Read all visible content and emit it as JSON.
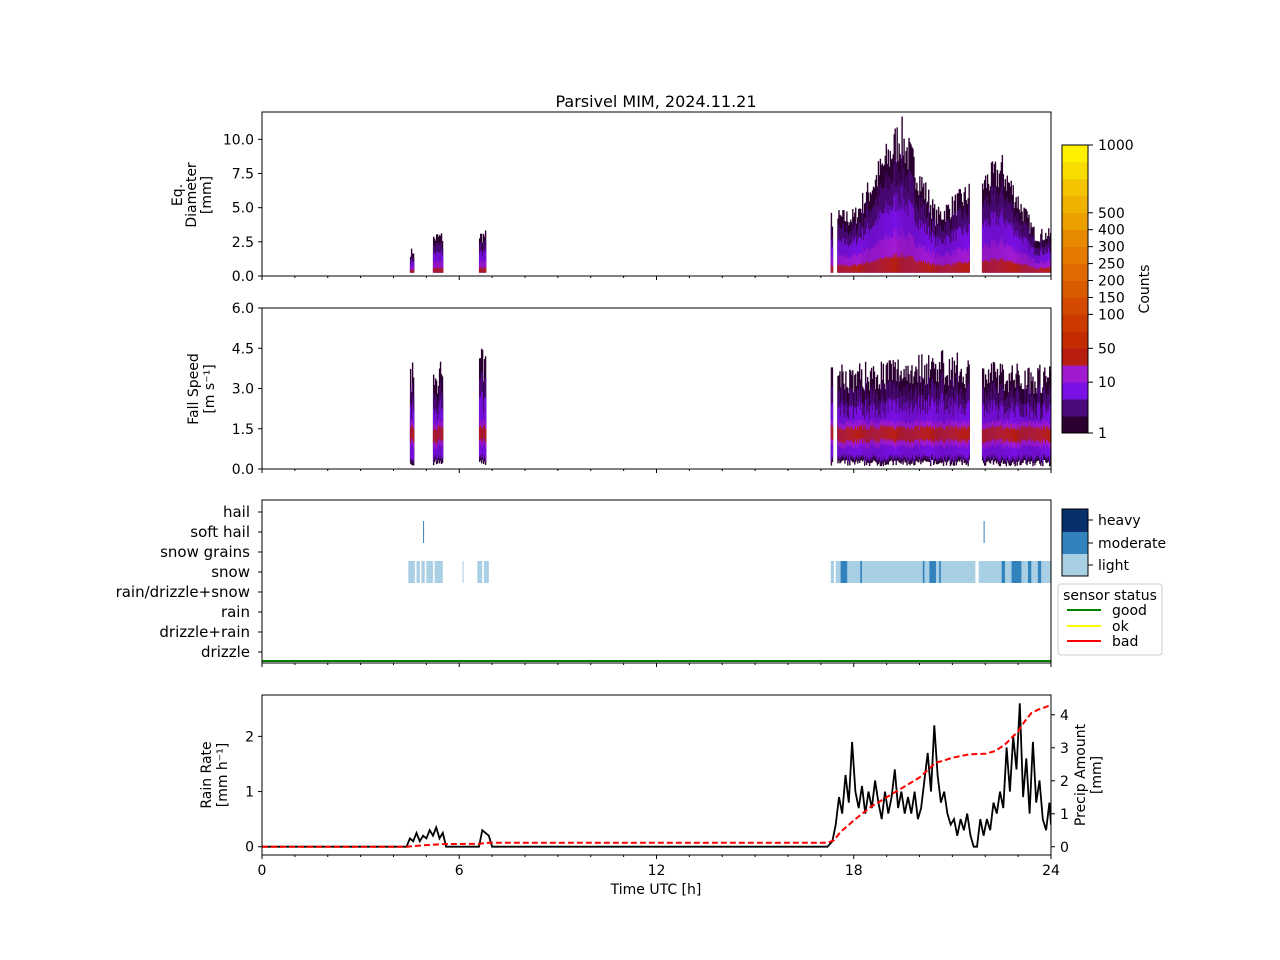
{
  "figure": {
    "title": "Parsivel MIM, 2024.11.21"
  },
  "colorbar": {
    "label": "Counts",
    "tick_labels": [
      "1",
      "10",
      "50",
      "100",
      "150",
      "200",
      "250",
      "300",
      "400",
      "500",
      "1000"
    ],
    "colors": [
      "#2b0030",
      "#4b0a7a",
      "#7a10e6",
      "#a21ad0",
      "#b81e10",
      "#c42b00",
      "#cc3a00",
      "#d44a00",
      "#da5a00",
      "#e06a00",
      "#e47a00",
      "#e88a00",
      "#eca000",
      "#f0b200",
      "#f4c400",
      "#f8dc00",
      "#fff000"
    ]
  },
  "ptype_legend": {
    "levels": [
      "heavy",
      "moderate",
      "light"
    ],
    "colors": {
      "heavy": "#08306b",
      "moderate": "#3182bd",
      "light": "#a9cfe5"
    }
  },
  "status_legend": {
    "title": "sensor status",
    "items": [
      {
        "label": "good",
        "color": "#008000"
      },
      {
        "label": "ok",
        "color": "#ffff00"
      },
      {
        "label": "bad",
        "color": "#ff0000"
      }
    ]
  },
  "chart_data": [
    {
      "type": "heatmap",
      "ylabel": [
        "Eq.",
        "Diameter",
        "[mm]"
      ],
      "xlim": [
        0,
        24
      ],
      "ylim": [
        0,
        12
      ],
      "yticks": [
        "0.0",
        "2.5",
        "5.0",
        "7.5",
        "10.0"
      ],
      "ytick_values": [
        0,
        2.5,
        5,
        7.5,
        10
      ],
      "precip_periods_h": [
        [
          4.5,
          4.6
        ],
        [
          5.2,
          5.5
        ],
        [
          6.6,
          6.8
        ],
        [
          17.3,
          17.35
        ],
        [
          17.5,
          21.5
        ],
        [
          21.9,
          24.0
        ]
      ],
      "max_extent_mm": [
        [
          4.5,
          2.0
        ],
        [
          5.3,
          3.3
        ],
        [
          6.7,
          3.4
        ],
        [
          18.0,
          5.0
        ],
        [
          19.4,
          12.0
        ],
        [
          20.5,
          5.0
        ],
        [
          22.5,
          9.0
        ],
        [
          23.5,
          3.5
        ]
      ]
    },
    {
      "type": "heatmap",
      "ylabel": [
        "Fall Speed",
        "[m s⁻¹]"
      ],
      "xlim": [
        0,
        24
      ],
      "ylim": [
        0,
        6
      ],
      "yticks": [
        "0.0",
        "1.5",
        "3.0",
        "4.5",
        "6.0"
      ],
      "ytick_values": [
        0,
        1.5,
        3,
        4.5,
        6
      ],
      "max_extent_ms": [
        [
          4.5,
          4.0
        ],
        [
          5.3,
          4.0
        ],
        [
          6.6,
          4.5
        ],
        [
          18.0,
          4.0
        ],
        [
          20.5,
          4.5
        ],
        [
          22.5,
          4.0
        ]
      ]
    },
    {
      "type": "table",
      "categories": [
        "hail",
        "soft hail",
        "snow grains",
        "snow",
        "rain/drizzle+snow",
        "rain",
        "drizzle+rain",
        "drizzle"
      ],
      "events": [
        {
          "category": "soft hail",
          "intensity": "moderate",
          "t": [
            4.9,
            4.92
          ]
        },
        {
          "category": "soft hail",
          "intensity": "moderate",
          "t": [
            21.95,
            21.97
          ]
        },
        {
          "category": "snow",
          "intensity": "light",
          "t": [
            4.45,
            4.65
          ]
        },
        {
          "category": "snow",
          "intensity": "light",
          "t": [
            4.7,
            4.8
          ]
        },
        {
          "category": "snow",
          "intensity": "light",
          "t": [
            4.85,
            4.95
          ]
        },
        {
          "category": "snow",
          "intensity": "light",
          "t": [
            5.0,
            5.2
          ]
        },
        {
          "category": "snow",
          "intensity": "light",
          "t": [
            5.25,
            5.5
          ]
        },
        {
          "category": "snow",
          "intensity": "light",
          "t": [
            6.1,
            6.13
          ]
        },
        {
          "category": "snow",
          "intensity": "light",
          "t": [
            6.55,
            6.7
          ]
        },
        {
          "category": "snow",
          "intensity": "light",
          "t": [
            6.75,
            6.9
          ]
        },
        {
          "category": "snow",
          "intensity": "light",
          "t": [
            17.3,
            17.4
          ]
        },
        {
          "category": "snow",
          "intensity": "light",
          "t": [
            17.45,
            21.7
          ]
        },
        {
          "category": "snow",
          "intensity": "light",
          "t": [
            21.8,
            24.0
          ]
        },
        {
          "category": "snow",
          "intensity": "moderate",
          "t": [
            17.6,
            17.8
          ]
        },
        {
          "category": "snow",
          "intensity": "moderate",
          "t": [
            18.2,
            18.25
          ]
        },
        {
          "category": "snow",
          "intensity": "moderate",
          "t": [
            20.1,
            20.15
          ]
        },
        {
          "category": "snow",
          "intensity": "moderate",
          "t": [
            20.3,
            20.5
          ]
        },
        {
          "category": "snow",
          "intensity": "moderate",
          "t": [
            20.6,
            20.65
          ]
        },
        {
          "category": "snow",
          "intensity": "moderate",
          "t": [
            22.5,
            22.6
          ]
        },
        {
          "category": "snow",
          "intensity": "moderate",
          "t": [
            22.8,
            23.1
          ]
        },
        {
          "category": "snow",
          "intensity": "moderate",
          "t": [
            23.3,
            23.4
          ]
        },
        {
          "category": "snow",
          "intensity": "moderate",
          "t": [
            23.6,
            23.7
          ]
        }
      ],
      "sensor_status": "good"
    },
    {
      "type": "line",
      "xlabel": "Time UTC [h]",
      "ylabel": [
        "Rain Rate",
        "[mm h⁻¹]"
      ],
      "y2label": [
        "Precip Amount",
        "[mm]"
      ],
      "xlim": [
        0,
        24
      ],
      "ylim": [
        -0.15,
        2.75
      ],
      "y2lim": [
        -0.25,
        4.6
      ],
      "xticks": [
        0,
        6,
        12,
        18,
        24
      ],
      "yticks": [
        0,
        1,
        2
      ],
      "y2ticks": [
        0,
        1,
        2,
        3,
        4
      ],
      "series": [
        {
          "axis": "left",
          "color": "#000000",
          "style": "solid",
          "x": [
            0,
            4.4,
            4.5,
            4.6,
            4.7,
            4.8,
            4.9,
            5.0,
            5.1,
            5.2,
            5.3,
            5.4,
            5.5,
            5.6,
            6.6,
            6.7,
            6.8,
            6.9,
            7.0,
            17.2,
            17.35,
            17.45,
            17.55,
            17.65,
            17.75,
            17.85,
            17.95,
            18.05,
            18.15,
            18.25,
            18.35,
            18.45,
            18.55,
            18.65,
            18.75,
            18.85,
            18.95,
            19.05,
            19.15,
            19.25,
            19.35,
            19.45,
            19.55,
            19.65,
            19.75,
            19.85,
            19.95,
            20.05,
            20.15,
            20.25,
            20.35,
            20.45,
            20.55,
            20.65,
            20.75,
            20.85,
            20.95,
            21.05,
            21.15,
            21.25,
            21.35,
            21.45,
            21.55,
            21.65,
            21.75,
            21.85,
            21.95,
            22.05,
            22.15,
            22.25,
            22.35,
            22.45,
            22.55,
            22.65,
            22.75,
            22.85,
            22.95,
            23.05,
            23.15,
            23.25,
            23.35,
            23.45,
            23.55,
            23.65,
            23.75,
            23.85,
            23.95,
            24.0
          ],
          "y": [
            0,
            0,
            0.15,
            0.1,
            0.25,
            0.1,
            0.2,
            0.15,
            0.3,
            0.2,
            0.35,
            0.15,
            0.25,
            0,
            0,
            0.3,
            0.25,
            0.2,
            0,
            0,
            0.1,
            0.4,
            0.9,
            0.6,
            1.3,
            0.8,
            1.9,
            1.0,
            0.7,
            1.1,
            0.6,
            1.0,
            0.7,
            1.2,
            0.8,
            0.5,
            1.0,
            0.6,
            0.9,
            1.4,
            0.7,
            1.0,
            0.6,
            0.9,
            0.6,
            1.0,
            0.5,
            0.7,
            1.2,
            1.7,
            1.0,
            2.2,
            1.3,
            0.8,
            1.0,
            0.6,
            0.4,
            0.5,
            0.2,
            0.5,
            0.3,
            0.6,
            0.2,
            0.0,
            0.0,
            0.5,
            0.2,
            0.5,
            0.3,
            0.8,
            0.6,
            1.0,
            0.7,
            1.8,
            1.0,
            2.0,
            1.4,
            2.6,
            0.9,
            1.6,
            0.6,
            1.9,
            0.8,
            1.2,
            0.5,
            0.3,
            0.8,
            0.4
          ]
        },
        {
          "axis": "right",
          "color": "#ff0000",
          "style": "dashed",
          "x": [
            0,
            4.4,
            4.6,
            5.0,
            5.5,
            6.6,
            6.9,
            17.2,
            17.4,
            17.6,
            18.0,
            18.5,
            19.0,
            19.5,
            20.0,
            20.5,
            20.7,
            21.0,
            21.5,
            22.0,
            22.3,
            22.6,
            23.0,
            23.2,
            23.4,
            23.6,
            23.8,
            24.0
          ],
          "y": [
            0,
            0,
            0.02,
            0.05,
            0.08,
            0.09,
            0.12,
            0.12,
            0.2,
            0.45,
            0.8,
            1.2,
            1.5,
            1.8,
            2.1,
            2.55,
            2.6,
            2.7,
            2.8,
            2.82,
            2.9,
            3.1,
            3.5,
            3.8,
            4.05,
            4.15,
            4.22,
            4.3
          ]
        }
      ]
    }
  ]
}
